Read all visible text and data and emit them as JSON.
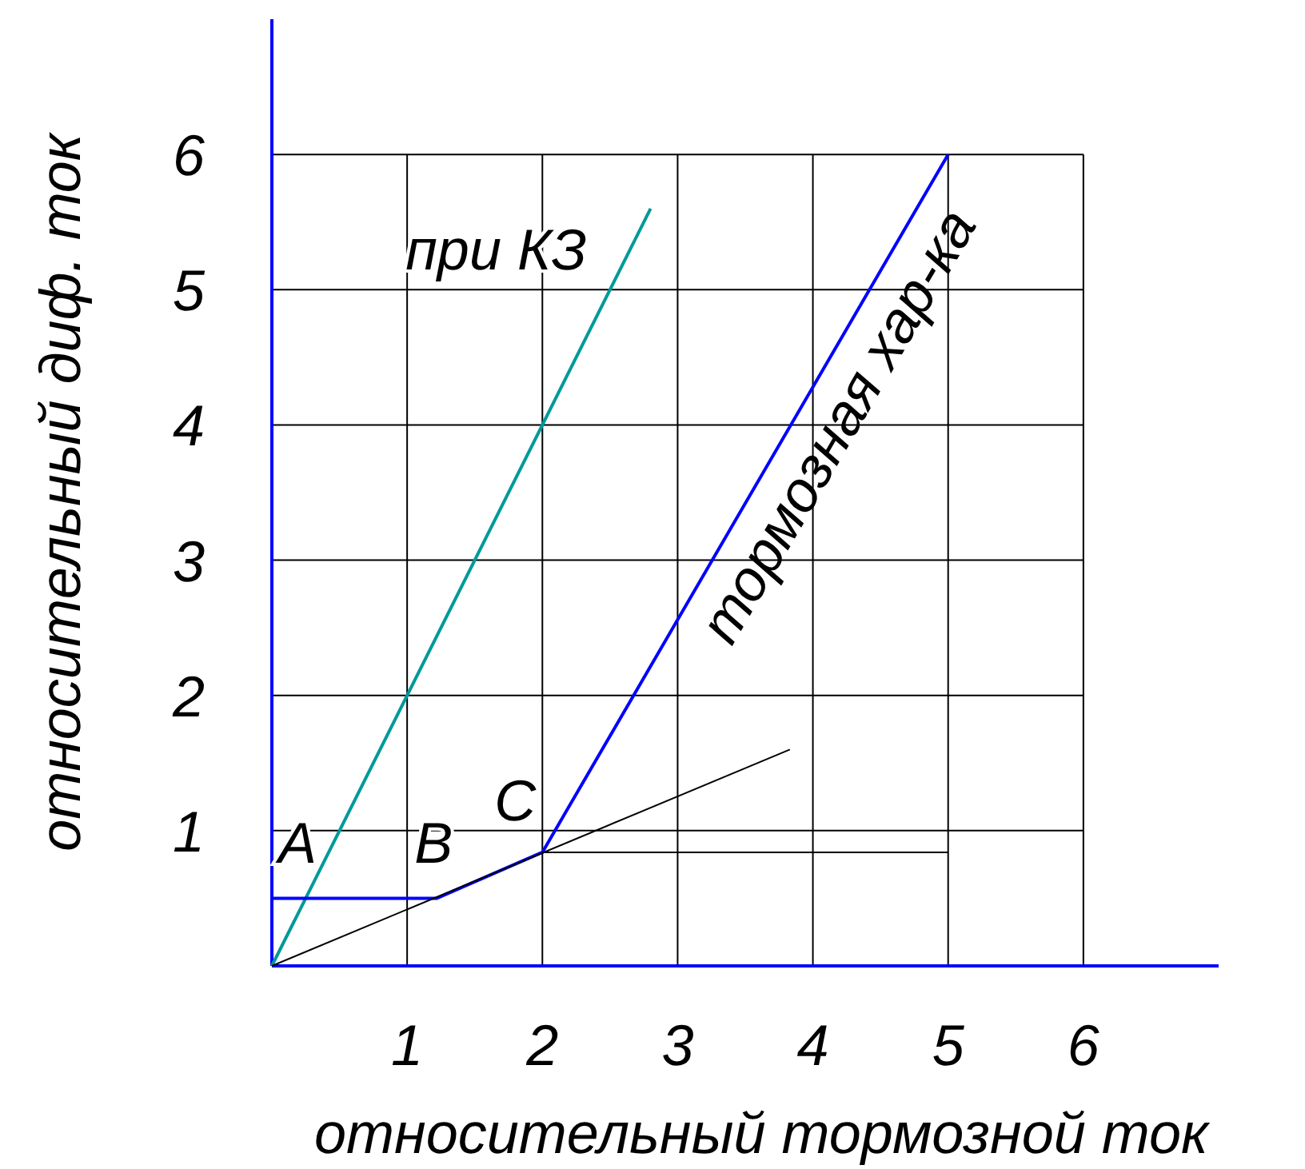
{
  "chart_data": {
    "type": "line",
    "xlabel": "относительный тормозной ток",
    "ylabel": "относительный диф. ток",
    "xlim": [
      0,
      7
    ],
    "ylim": [
      0,
      7
    ],
    "xticks": [
      1,
      2,
      3,
      4,
      5,
      6
    ],
    "yticks": [
      1,
      2,
      3,
      4,
      5,
      6
    ],
    "grid": true,
    "line_style": "solid",
    "series": [
      {
        "name": "при КЗ",
        "color": "#009999",
        "x": [
          0,
          2.8
        ],
        "values": [
          0,
          5.6
        ]
      },
      {
        "name": "тормозная хар-ка",
        "color": "#0000ff",
        "x": [
          0,
          1.22,
          2,
          5
        ],
        "values": [
          0.5,
          0.5,
          0.84,
          6
        ]
      },
      {
        "color": "#000000",
        "x": [
          0,
          3.83
        ],
        "values": [
          0,
          1.6
        ]
      },
      {
        "color": "#000000",
        "x": [
          2,
          5
        ],
        "values": [
          0.84,
          0.84
        ]
      }
    ],
    "annotations": [
      {
        "text": "A",
        "x": 0,
        "y": 0.5
      },
      {
        "text": "B",
        "x": 1.22,
        "y": 0.5
      },
      {
        "text": "C",
        "x": 2,
        "y": 0.84
      }
    ]
  }
}
